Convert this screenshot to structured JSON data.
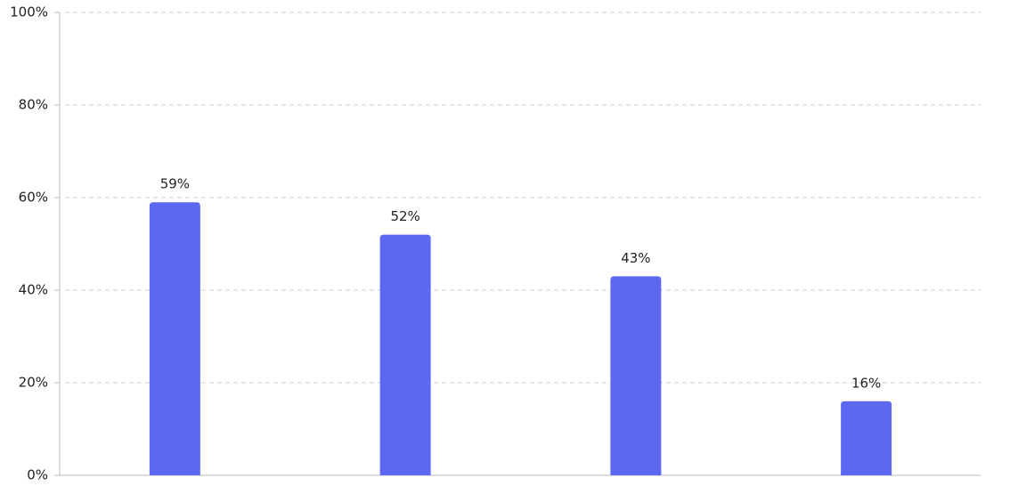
{
  "chart_data": {
    "type": "bar",
    "categories": [
      null,
      null,
      null,
      null
    ],
    "values": [
      59,
      52,
      43,
      16
    ],
    "value_labels": [
      "59%",
      "52%",
      "43%",
      "16%"
    ],
    "color": "#5d68f1",
    "ylim": [
      0,
      100
    ],
    "yticks": [
      {
        "value": 0,
        "label": "0%"
      },
      {
        "value": 20,
        "label": "20%"
      },
      {
        "value": 40,
        "label": "40%"
      },
      {
        "value": 60,
        "label": "60%"
      },
      {
        "value": 80,
        "label": "80%"
      },
      {
        "value": 100,
        "label": "100%"
      }
    ],
    "grid": true
  }
}
